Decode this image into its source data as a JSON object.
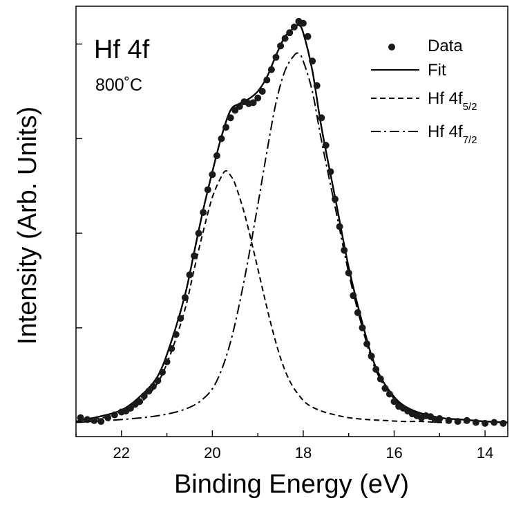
{
  "chart_data": {
    "type": "line",
    "title": "",
    "annotations": {
      "element": "Hf 4f",
      "condition": "800˚C"
    },
    "xlabel": "Binding Energy (eV)",
    "ylabel": "Intensity (Arb. Units)",
    "xlim": [
      23.0,
      13.5
    ],
    "x_reversed": true,
    "ylim": [
      -0.15,
      4.4
    ],
    "x_ticks": [
      22,
      20,
      18,
      16,
      14
    ],
    "y_tick_labels_shown": false,
    "grid": false,
    "legend": {
      "position": "top-right",
      "entries": [
        {
          "name": "Data",
          "sub": "",
          "style": "markers"
        },
        {
          "name": "Fit",
          "sub": "",
          "style": "solid"
        },
        {
          "name": "Hf 4f",
          "sub": "5/2",
          "style": "dashed"
        },
        {
          "name": "Hf 4f",
          "sub": "7/2",
          "style": "dashdot"
        }
      ]
    },
    "series": [
      {
        "name": "Hf 4f5/2",
        "style": "dashed",
        "x": [
          23.0,
          22.5,
          22.0,
          21.6,
          21.2,
          20.9,
          20.6,
          20.4,
          20.2,
          20.0,
          19.8,
          19.7,
          19.6,
          19.5,
          19.3,
          19.1,
          18.9,
          18.7,
          18.5,
          18.3,
          18.1,
          17.9,
          17.6,
          17.3,
          17.0,
          16.6,
          16.2,
          15.8,
          15.4,
          15.0,
          14.5,
          14.0,
          13.5
        ],
        "values": [
          0.0,
          0.04,
          0.1,
          0.2,
          0.42,
          0.75,
          1.2,
          1.62,
          2.02,
          2.38,
          2.6,
          2.66,
          2.61,
          2.52,
          2.22,
          1.83,
          1.42,
          1.02,
          0.68,
          0.44,
          0.29,
          0.19,
          0.12,
          0.08,
          0.05,
          0.03,
          0.02,
          0.01,
          0.01,
          0.0,
          0.0,
          0.0,
          0.0
        ]
      },
      {
        "name": "Hf 4f7/2",
        "style": "dashdot",
        "x": [
          23.0,
          22.0,
          21.2,
          20.6,
          20.2,
          19.9,
          19.6,
          19.3,
          19.0,
          18.8,
          18.6,
          18.4,
          18.2,
          18.1,
          18.0,
          17.8,
          17.6,
          17.3,
          17.0,
          16.7,
          16.4,
          16.0,
          15.6,
          15.0,
          14.5,
          14.0,
          13.5
        ],
        "values": [
          0.0,
          0.03,
          0.07,
          0.14,
          0.25,
          0.44,
          0.85,
          1.5,
          2.3,
          2.86,
          3.38,
          3.72,
          3.88,
          3.9,
          3.82,
          3.5,
          2.98,
          2.28,
          1.58,
          1.0,
          0.55,
          0.25,
          0.12,
          0.05,
          0.03,
          0.01,
          0.0
        ]
      },
      {
        "name": "Fit",
        "style": "solid",
        "x": [
          23.0,
          22.5,
          22.0,
          21.6,
          21.2,
          20.9,
          20.6,
          20.4,
          20.2,
          20.0,
          19.8,
          19.6,
          19.4,
          19.2,
          19.0,
          18.8,
          18.6,
          18.4,
          18.2,
          18.1,
          18.0,
          17.8,
          17.6,
          17.3,
          17.0,
          16.7,
          16.4,
          16.0,
          15.6,
          15.0,
          14.5,
          14.0,
          13.5
        ],
        "values": [
          0.01,
          0.06,
          0.13,
          0.27,
          0.49,
          0.86,
          1.35,
          1.8,
          2.25,
          2.65,
          3.02,
          3.3,
          3.37,
          3.42,
          3.5,
          3.65,
          3.88,
          4.08,
          4.17,
          4.2,
          4.12,
          3.72,
          3.12,
          2.38,
          1.64,
          1.05,
          0.58,
          0.27,
          0.13,
          0.05,
          0.03,
          0.01,
          0.0
        ]
      },
      {
        "name": "Data",
        "style": "markers",
        "x": [
          22.9,
          22.75,
          22.6,
          22.45,
          22.3,
          22.15,
          22.0,
          21.9,
          21.8,
          21.7,
          21.6,
          21.5,
          21.4,
          21.3,
          21.2,
          21.1,
          21.0,
          20.9,
          20.8,
          20.7,
          20.6,
          20.5,
          20.4,
          20.3,
          20.2,
          20.1,
          20.0,
          19.9,
          19.8,
          19.7,
          19.6,
          19.5,
          19.4,
          19.3,
          19.2,
          19.1,
          19.0,
          18.9,
          18.8,
          18.7,
          18.6,
          18.5,
          18.4,
          18.3,
          18.2,
          18.1,
          18.0,
          17.9,
          17.8,
          17.7,
          17.6,
          17.5,
          17.4,
          17.3,
          17.2,
          17.1,
          17.0,
          16.9,
          16.8,
          16.7,
          16.6,
          16.5,
          16.4,
          16.3,
          16.2,
          16.1,
          16.0,
          15.9,
          15.8,
          15.7,
          15.6,
          15.5,
          15.4,
          15.3,
          15.2,
          15.1,
          15.0,
          14.8,
          14.6,
          14.4,
          14.2,
          14.0,
          13.8,
          13.6
        ],
        "values": [
          0.05,
          0.03,
          0.02,
          0.01,
          0.05,
          0.08,
          0.11,
          0.12,
          0.15,
          0.19,
          0.22,
          0.28,
          0.33,
          0.38,
          0.44,
          0.53,
          0.64,
          0.78,
          0.93,
          1.1,
          1.32,
          1.56,
          1.76,
          2.0,
          2.22,
          2.46,
          2.62,
          2.82,
          3.0,
          3.12,
          3.22,
          3.3,
          3.34,
          3.39,
          3.37,
          3.38,
          3.43,
          3.5,
          3.62,
          3.73,
          3.86,
          3.98,
          4.06,
          4.12,
          4.18,
          4.24,
          4.22,
          4.08,
          3.82,
          3.56,
          3.22,
          2.93,
          2.65,
          2.36,
          2.07,
          1.82,
          1.58,
          1.34,
          1.16,
          1.0,
          0.83,
          0.7,
          0.56,
          0.46,
          0.36,
          0.3,
          0.22,
          0.17,
          0.15,
          0.12,
          0.09,
          0.07,
          0.05,
          0.07,
          0.06,
          0.03,
          0.04,
          0.02,
          0.01,
          0.02,
          0.0,
          -0.01,
          0.0,
          -0.01
        ]
      }
    ]
  }
}
